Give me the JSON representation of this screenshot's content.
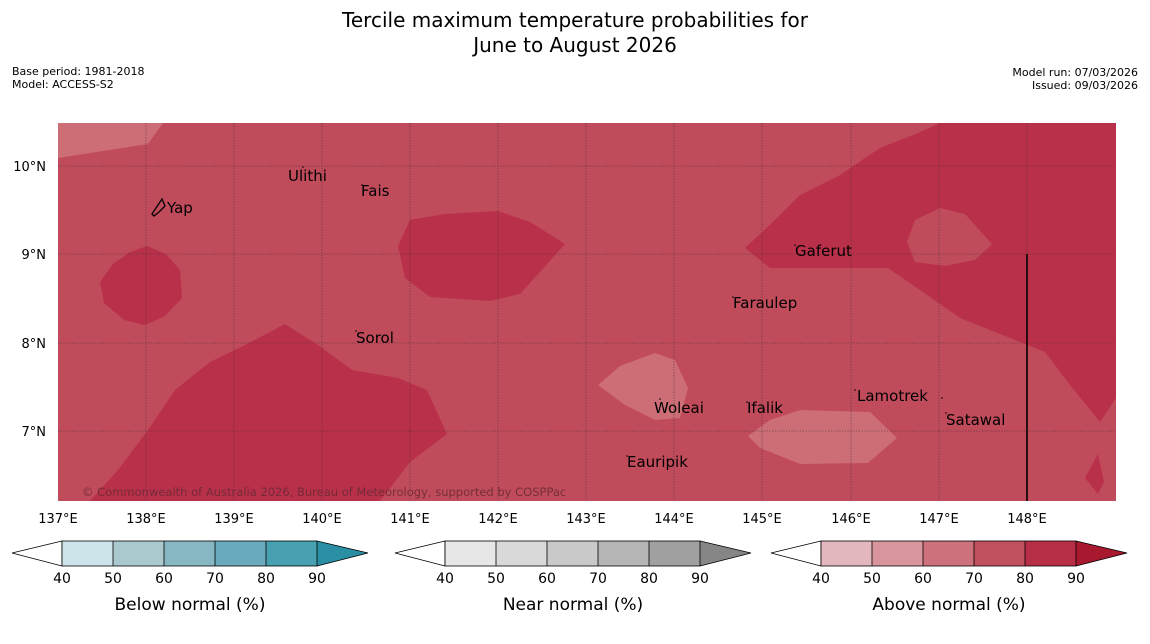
{
  "header": {
    "title_line1": "Tercile maximum temperature probabilities for",
    "title_line2": "June to August 2026",
    "base_period": "Base period: 1981-2018",
    "model": "Model: ACCESS-S2",
    "model_run": "Model run: 07/03/2026",
    "issued": "Issued: 09/03/2026"
  },
  "map": {
    "lat_labels": [
      "10°N",
      "9°N",
      "8°N",
      "7°N"
    ],
    "lon_labels": [
      "137°E",
      "138°E",
      "139°E",
      "140°E",
      "141°E",
      "142°E",
      "143°E",
      "144°E",
      "145°E",
      "146°E",
      "147°E",
      "148°E"
    ],
    "places": [
      "Yap",
      "Ulithi",
      "Fais",
      "Sorol",
      "Gaferut",
      "Faraulep",
      "Woleai",
      "Ifalik",
      "Lamotrek",
      "Satawal",
      "Eauripik"
    ],
    "copyright": "© Commonwealth of Australia 2026, Bureau of Meteorology, supported by COSPPac",
    "colors": {
      "above_60_70": "#cd6d76",
      "above_70_80": "#c04b5b",
      "above_80_90": "#b9304a"
    }
  },
  "colorbars": {
    "below": {
      "label": "Below normal (%)",
      "ticks": [
        "40",
        "50",
        "60",
        "70",
        "80",
        "90"
      ],
      "colors": [
        "#cde3ea",
        "#a9c9cf",
        "#88b7c4",
        "#69abbc",
        "#47a1b1",
        "#2a8fa5"
      ]
    },
    "near": {
      "label": "Near normal (%)",
      "ticks": [
        "40",
        "50",
        "60",
        "70",
        "80",
        "90"
      ],
      "colors": [
        "#e7e7e7",
        "#d9d9d9",
        "#c9c9c9",
        "#b5b5b5",
        "#a0a0a0",
        "#868686"
      ]
    },
    "above": {
      "label": "Above normal (%)",
      "ticks": [
        "40",
        "50",
        "60",
        "70",
        "80",
        "90"
      ],
      "colors": [
        "#e2b7bd",
        "#d9959e",
        "#cd727c",
        "#c0505e",
        "#b72e47",
        "#a8192f"
      ]
    }
  }
}
